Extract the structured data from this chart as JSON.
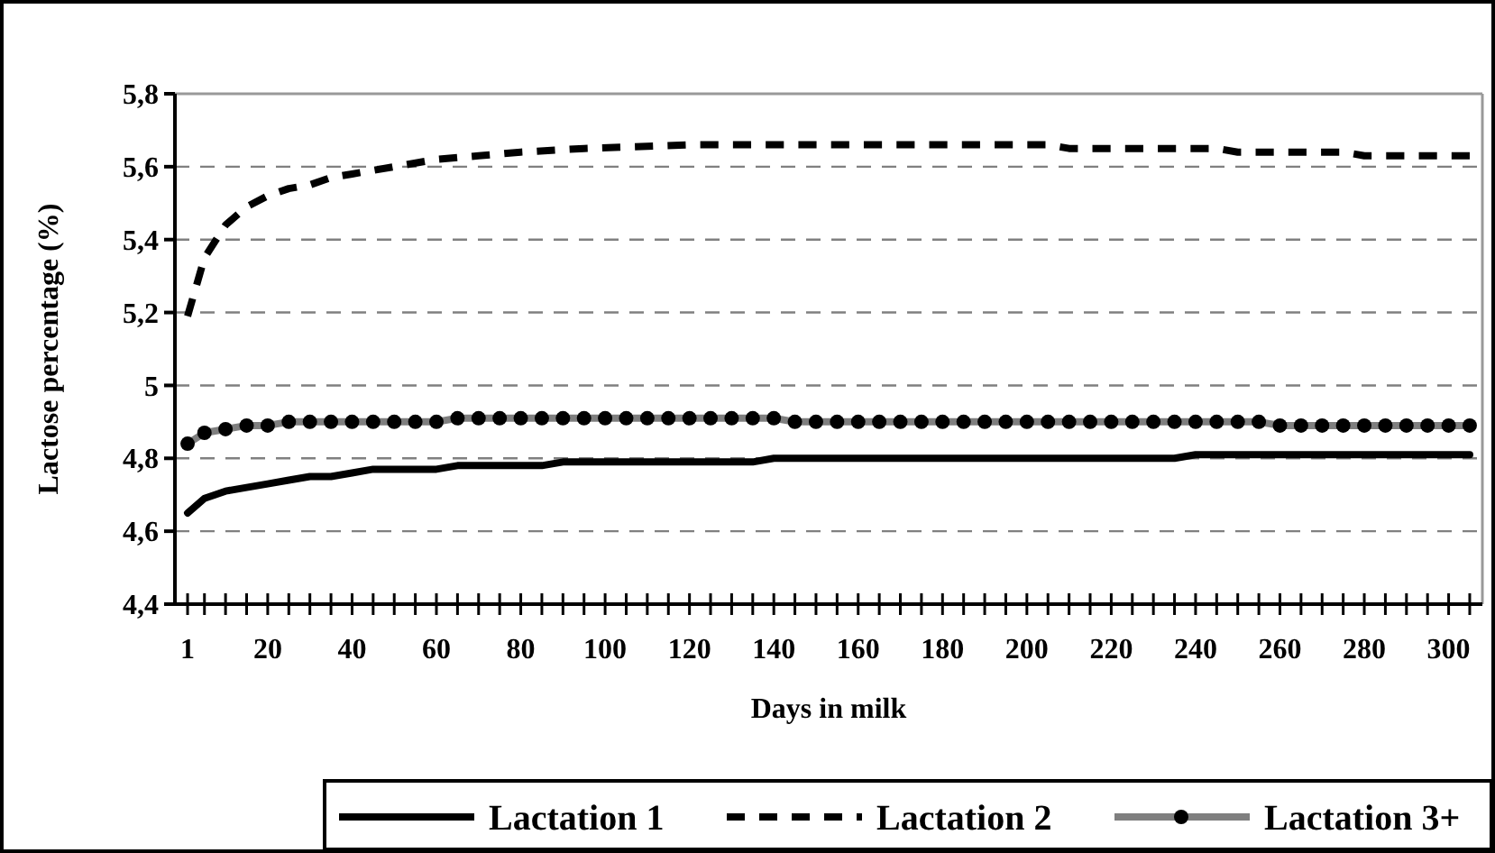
{
  "chart_data": {
    "type": "line",
    "xlabel": "Days in milk",
    "ylabel": "Lactose percentage (%)",
    "xlim": [
      -2,
      308
    ],
    "ylim": [
      4.4,
      5.8
    ],
    "xticks": [
      1,
      {
        "value": 5,
        "label": null
      },
      {
        "value": 10,
        "label": null
      },
      {
        "value": 15,
        "label": null
      },
      20,
      {
        "value": 25,
        "label": null
      },
      {
        "value": 30,
        "label": null
      },
      {
        "value": 35,
        "label": null
      },
      40,
      {
        "value": 45,
        "label": null
      },
      {
        "value": 50,
        "label": null
      },
      {
        "value": 55,
        "label": null
      },
      60,
      {
        "value": 65,
        "label": null
      },
      {
        "value": 70,
        "label": null
      },
      {
        "value": 75,
        "label": null
      },
      80,
      {
        "value": 85,
        "label": null
      },
      {
        "value": 90,
        "label": null
      },
      {
        "value": 95,
        "label": null
      },
      100,
      {
        "value": 105,
        "label": null
      },
      {
        "value": 110,
        "label": null
      },
      {
        "value": 115,
        "label": null
      },
      120,
      {
        "value": 125,
        "label": null
      },
      {
        "value": 130,
        "label": null
      },
      {
        "value": 135,
        "label": null
      },
      140,
      {
        "value": 145,
        "label": null
      },
      {
        "value": 150,
        "label": null
      },
      {
        "value": 155,
        "label": null
      },
      160,
      {
        "value": 165,
        "label": null
      },
      {
        "value": 170,
        "label": null
      },
      {
        "value": 175,
        "label": null
      },
      180,
      {
        "value": 185,
        "label": null
      },
      {
        "value": 190,
        "label": null
      },
      {
        "value": 195,
        "label": null
      },
      200,
      {
        "value": 205,
        "label": null
      },
      {
        "value": 210,
        "label": null
      },
      {
        "value": 215,
        "label": null
      },
      220,
      {
        "value": 225,
        "label": null
      },
      {
        "value": 230,
        "label": null
      },
      {
        "value": 235,
        "label": null
      },
      240,
      {
        "value": 245,
        "label": null
      },
      {
        "value": 250,
        "label": null
      },
      {
        "value": 255,
        "label": null
      },
      260,
      {
        "value": 265,
        "label": null
      },
      {
        "value": 270,
        "label": null
      },
      {
        "value": 275,
        "label": null
      },
      280,
      {
        "value": 285,
        "label": null
      },
      {
        "value": 290,
        "label": null
      },
      {
        "value": 295,
        "label": null
      },
      300,
      {
        "value": 305,
        "label": null
      }
    ],
    "yticks": [
      {
        "value": 4.4,
        "label": "4,4"
      },
      {
        "value": 4.6,
        "label": "4,6"
      },
      {
        "value": 4.8,
        "label": "4,8"
      },
      5,
      {
        "value": 5.2,
        "label": "5,2"
      },
      {
        "value": 5.4,
        "label": "5,4"
      },
      {
        "value": 5.6,
        "label": "5,6"
      },
      {
        "value": 5.8,
        "label": "5,8"
      }
    ],
    "grid": "y",
    "legend": "bottom",
    "series": [
      {
        "name": "Lactation 1",
        "color": "#000000",
        "line_style": "solid",
        "marker": "none",
        "x": [
          1,
          5,
          10,
          15,
          20,
          25,
          30,
          35,
          40,
          45,
          60,
          65,
          85,
          90,
          135,
          140,
          235,
          240,
          305
        ],
        "values": [
          4.65,
          4.69,
          4.71,
          4.72,
          4.73,
          4.74,
          4.75,
          4.75,
          4.76,
          4.77,
          4.77,
          4.78,
          4.78,
          4.79,
          4.79,
          4.8,
          4.8,
          4.81,
          4.81
        ]
      },
      {
        "name": "Lactation 2",
        "color": "#000000",
        "line_style": "dashed",
        "marker": "none",
        "x": [
          1,
          5,
          10,
          15,
          20,
          25,
          30,
          35,
          40,
          50,
          60,
          70,
          80,
          95,
          120,
          205,
          210,
          245,
          250,
          275,
          280,
          305
        ],
        "values": [
          5.19,
          5.35,
          5.44,
          5.49,
          5.52,
          5.54,
          5.55,
          5.57,
          5.58,
          5.6,
          5.62,
          5.63,
          5.64,
          5.65,
          5.66,
          5.66,
          5.65,
          5.65,
          5.64,
          5.64,
          5.63,
          5.63
        ]
      },
      {
        "name": "Lactation 3+",
        "color": "#000000",
        "line_style": "solid",
        "marker": "circle",
        "x": [
          1,
          5,
          10,
          15,
          20,
          25,
          30,
          35,
          40,
          45,
          50,
          55,
          60,
          65,
          70,
          75,
          80,
          85,
          90,
          95,
          100,
          105,
          110,
          115,
          120,
          125,
          130,
          135,
          140,
          145,
          150,
          155,
          160,
          165,
          170,
          175,
          180,
          185,
          190,
          195,
          200,
          205,
          210,
          215,
          220,
          225,
          230,
          235,
          240,
          245,
          250,
          255,
          260,
          265,
          270,
          275,
          280,
          285,
          290,
          295,
          300,
          305
        ],
        "values": [
          4.84,
          4.87,
          4.88,
          4.89,
          4.89,
          4.9,
          4.9,
          4.9,
          4.9,
          4.9,
          4.9,
          4.9,
          4.9,
          4.91,
          4.91,
          4.91,
          4.91,
          4.91,
          4.91,
          4.91,
          4.91,
          4.91,
          4.91,
          4.91,
          4.91,
          4.91,
          4.91,
          4.91,
          4.91,
          4.9,
          4.9,
          4.9,
          4.9,
          4.9,
          4.9,
          4.9,
          4.9,
          4.9,
          4.9,
          4.9,
          4.9,
          4.9,
          4.9,
          4.9,
          4.9,
          4.9,
          4.9,
          4.9,
          4.9,
          4.9,
          4.9,
          4.9,
          4.89,
          4.89,
          4.89,
          4.89,
          4.89,
          4.89,
          4.89,
          4.89,
          4.89,
          4.89
        ]
      }
    ]
  }
}
